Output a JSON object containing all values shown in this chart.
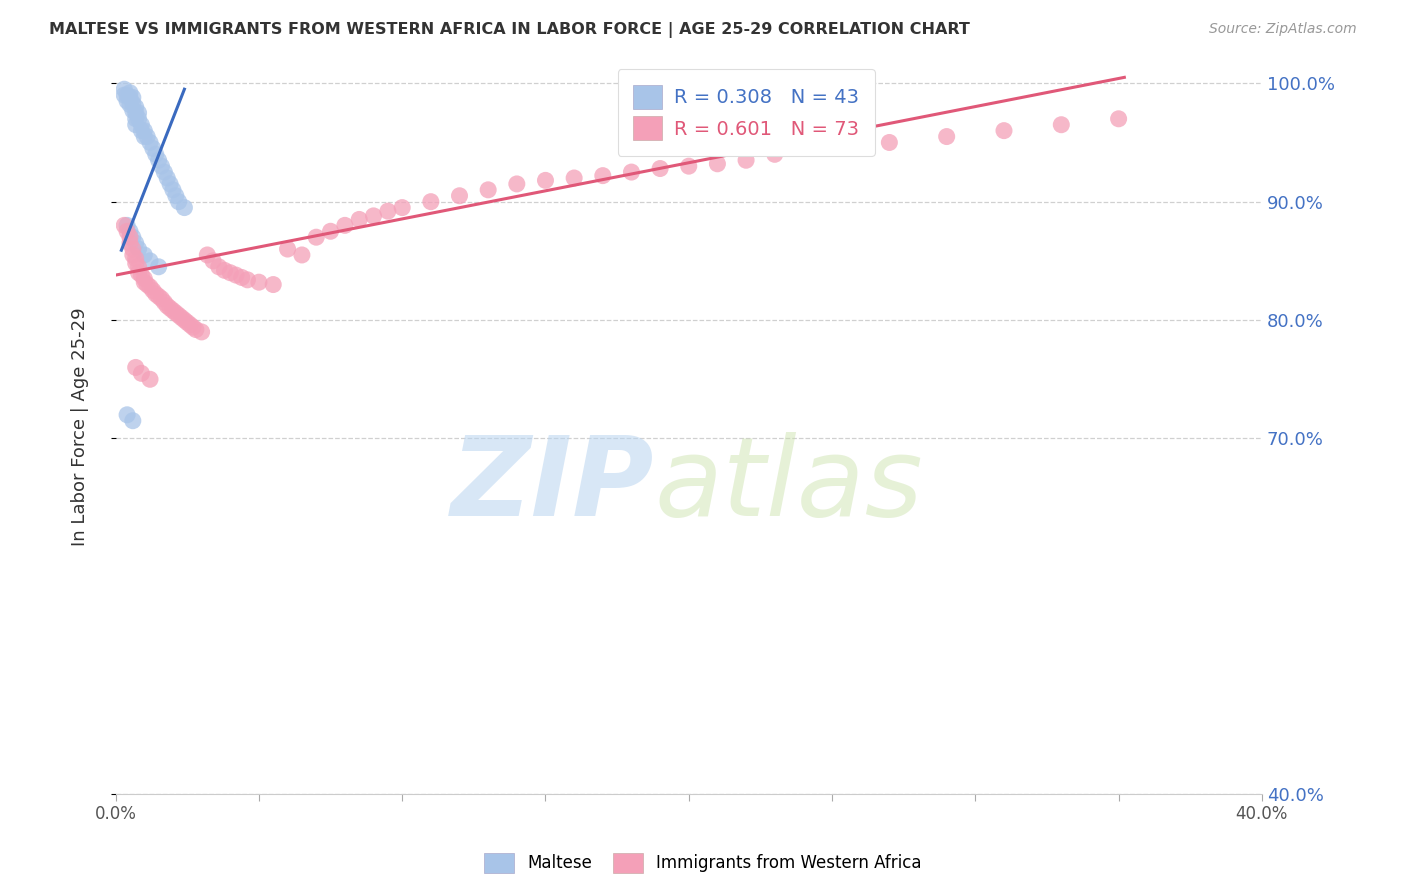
{
  "title": "MALTESE VS IMMIGRANTS FROM WESTERN AFRICA IN LABOR FORCE | AGE 25-29 CORRELATION CHART",
  "source": "Source: ZipAtlas.com",
  "ylabel": "In Labor Force | Age 25-29",
  "blue_color": "#a8c4e8",
  "pink_color": "#f4a0b8",
  "blue_line_color": "#3a6abf",
  "pink_line_color": "#e05878",
  "xmin": 0.0,
  "xmax": 0.4,
  "ymin": 0.4,
  "ymax": 1.02,
  "yticks": [
    0.4,
    0.7,
    0.8,
    0.9,
    1.0
  ],
  "xtick_labels_show": [
    0.0,
    0.4
  ],
  "watermark_zip": "ZIP",
  "watermark_atlas": "atlas",
  "legend_blue_text": "R = 0.308   N = 43",
  "legend_pink_text": "R = 0.601   N = 73",
  "bottom_legend": [
    "Maltese",
    "Immigrants from Western Africa"
  ],
  "blue_scatter_x": [
    0.003,
    0.003,
    0.004,
    0.004,
    0.005,
    0.005,
    0.005,
    0.006,
    0.006,
    0.006,
    0.007,
    0.007,
    0.007,
    0.007,
    0.008,
    0.008,
    0.009,
    0.009,
    0.01,
    0.01,
    0.011,
    0.012,
    0.013,
    0.014,
    0.015,
    0.016,
    0.017,
    0.018,
    0.019,
    0.02,
    0.021,
    0.022,
    0.024,
    0.004,
    0.005,
    0.006,
    0.007,
    0.008,
    0.01,
    0.012,
    0.015,
    0.004,
    0.006
  ],
  "blue_scatter_y": [
    0.995,
    0.99,
    0.99,
    0.985,
    0.992,
    0.988,
    0.982,
    0.988,
    0.983,
    0.977,
    0.98,
    0.975,
    0.97,
    0.965,
    0.975,
    0.97,
    0.965,
    0.96,
    0.96,
    0.955,
    0.955,
    0.95,
    0.945,
    0.94,
    0.935,
    0.93,
    0.925,
    0.92,
    0.915,
    0.91,
    0.905,
    0.9,
    0.895,
    0.88,
    0.875,
    0.87,
    0.865,
    0.86,
    0.855,
    0.85,
    0.845,
    0.72,
    0.715
  ],
  "pink_scatter_x": [
    0.003,
    0.004,
    0.005,
    0.005,
    0.006,
    0.006,
    0.007,
    0.007,
    0.008,
    0.008,
    0.009,
    0.01,
    0.01,
    0.011,
    0.012,
    0.013,
    0.014,
    0.015,
    0.016,
    0.017,
    0.018,
    0.019,
    0.02,
    0.021,
    0.022,
    0.023,
    0.024,
    0.025,
    0.026,
    0.027,
    0.028,
    0.03,
    0.032,
    0.034,
    0.036,
    0.038,
    0.04,
    0.042,
    0.044,
    0.046,
    0.05,
    0.055,
    0.06,
    0.065,
    0.07,
    0.075,
    0.08,
    0.085,
    0.09,
    0.095,
    0.1,
    0.11,
    0.12,
    0.13,
    0.14,
    0.15,
    0.16,
    0.17,
    0.18,
    0.19,
    0.2,
    0.21,
    0.22,
    0.23,
    0.25,
    0.27,
    0.29,
    0.31,
    0.33,
    0.35,
    0.007,
    0.009,
    0.012
  ],
  "pink_scatter_y": [
    0.88,
    0.875,
    0.87,
    0.865,
    0.86,
    0.855,
    0.852,
    0.848,
    0.845,
    0.84,
    0.838,
    0.835,
    0.832,
    0.83,
    0.828,
    0.825,
    0.822,
    0.82,
    0.818,
    0.815,
    0.812,
    0.81,
    0.808,
    0.806,
    0.804,
    0.802,
    0.8,
    0.798,
    0.796,
    0.794,
    0.792,
    0.79,
    0.855,
    0.85,
    0.845,
    0.842,
    0.84,
    0.838,
    0.836,
    0.834,
    0.832,
    0.83,
    0.86,
    0.855,
    0.87,
    0.875,
    0.88,
    0.885,
    0.888,
    0.892,
    0.895,
    0.9,
    0.905,
    0.91,
    0.915,
    0.918,
    0.92,
    0.922,
    0.925,
    0.928,
    0.93,
    0.932,
    0.935,
    0.94,
    0.945,
    0.95,
    0.955,
    0.96,
    0.965,
    0.97,
    0.76,
    0.755,
    0.75
  ],
  "blue_trend_x": [
    0.002,
    0.024
  ],
  "blue_trend_y": [
    0.859,
    0.995
  ],
  "pink_trend_x": [
    0.0,
    0.352
  ],
  "pink_trend_y": [
    0.838,
    1.005
  ]
}
